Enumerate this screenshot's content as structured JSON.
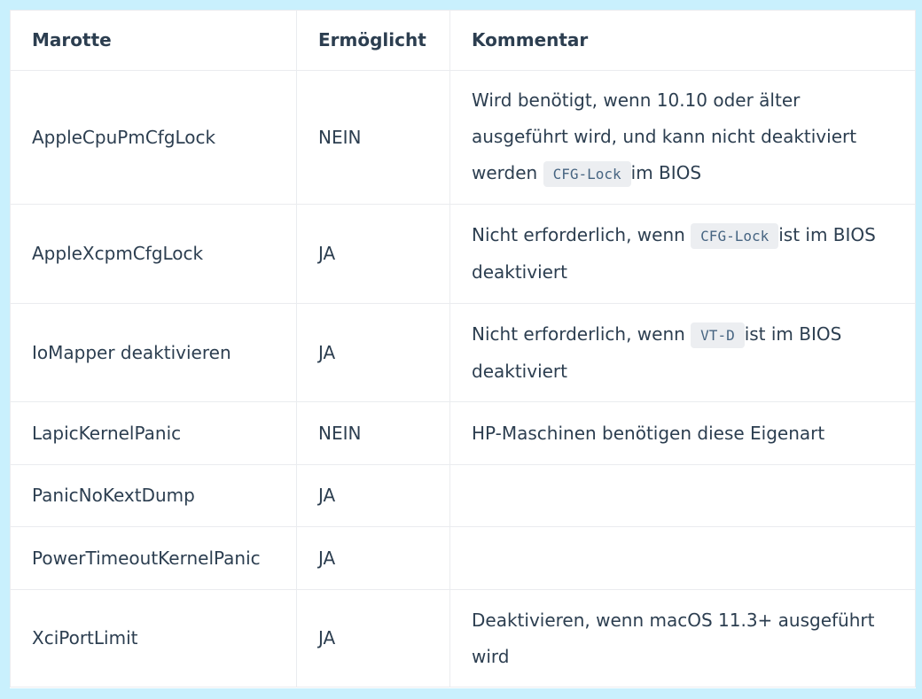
{
  "headers": [
    "Marotte",
    "Ermöglicht",
    "Kommentar"
  ],
  "rows": [
    {
      "quirk": "AppleCpuPmCfgLock",
      "enabled": "NEIN",
      "pre": "Wird benötigt, wenn 10.10 oder älter ausgeführt wird, und kann nicht deaktiviert werden ",
      "code": "CFG-Lock",
      "post": "im BIOS"
    },
    {
      "quirk": "AppleXcpmCfgLock",
      "enabled": "JA",
      "pre": "Nicht erforderlich, wenn ",
      "code": "CFG-Lock",
      "post": "ist im BIOS deaktiviert"
    },
    {
      "quirk": "IoMapper deaktivieren",
      "enabled": "JA",
      "pre": "Nicht erforderlich, wenn ",
      "code": "VT-D",
      "post": "ist im BIOS deaktiviert"
    },
    {
      "quirk": "LapicKernelPanic",
      "enabled": "NEIN",
      "pre": "HP-Maschinen benötigen diese Eigenart",
      "code": null,
      "post": ""
    },
    {
      "quirk": "PanicNoKextDump",
      "enabled": "JA",
      "pre": "",
      "code": null,
      "post": ""
    },
    {
      "quirk": "PowerTimeoutKernelPanic",
      "enabled": "JA",
      "pre": "",
      "code": null,
      "post": ""
    },
    {
      "quirk": "XciPortLimit",
      "enabled": "JA",
      "pre": "Deaktivieren, wenn macOS 11.3+ ausgeführt wird",
      "code": null,
      "post": ""
    }
  ]
}
